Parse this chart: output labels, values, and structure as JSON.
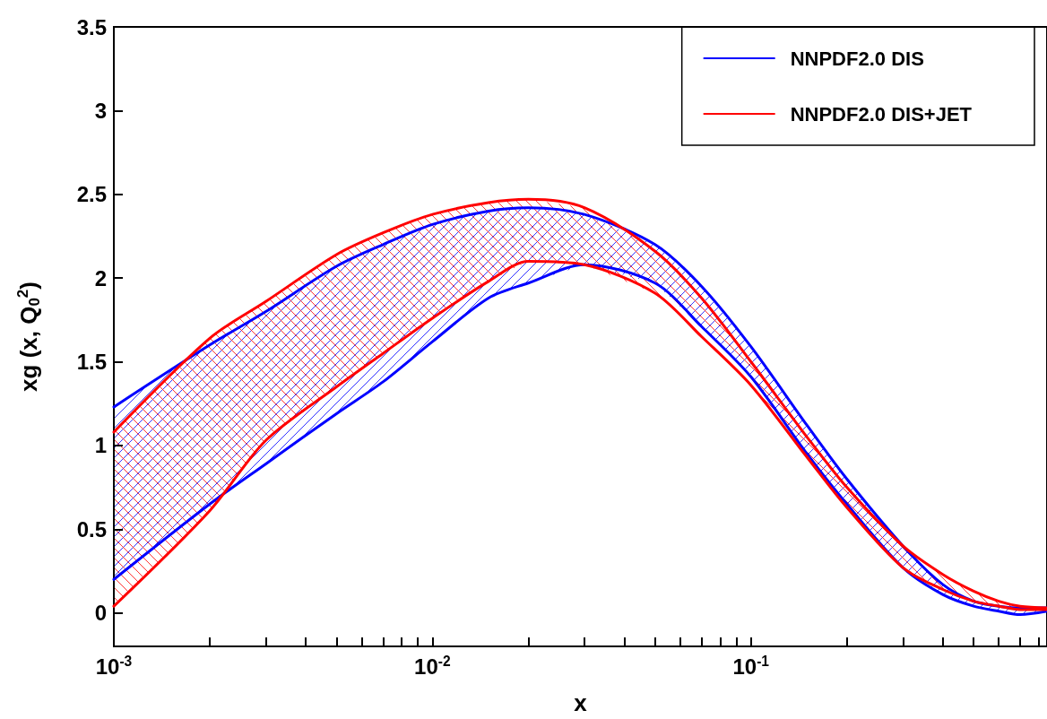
{
  "chart_data": {
    "type": "line",
    "xlabel": "x",
    "ylabel": "xg (x, Q$_{0}$$^{2}$)",
    "x": [
      0.001,
      0.002,
      0.003,
      0.005,
      0.007,
      0.01,
      0.015,
      0.02,
      0.03,
      0.05,
      0.07,
      0.1,
      0.15,
      0.2,
      0.3,
      0.4,
      0.5,
      0.6,
      0.7,
      0.85
    ],
    "series": [
      {
        "name": "NNPDF2.0 DIS",
        "color": "#0000ff",
        "values": [
          1.23,
          1.6,
          1.8,
          2.07,
          2.2,
          2.32,
          2.4,
          2.42,
          2.38,
          2.2,
          1.95,
          1.59,
          1.12,
          0.8,
          0.4,
          0.17,
          0.07,
          0.04,
          0.03,
          0.03
        ],
        "upper": [
          1.23,
          1.6,
          1.8,
          2.07,
          2.2,
          2.32,
          2.4,
          2.42,
          2.38,
          2.2,
          1.95,
          1.59,
          1.12,
          0.8,
          0.4,
          0.17,
          0.07,
          0.04,
          0.03,
          0.03
        ],
        "lower": [
          0.2,
          0.65,
          0.89,
          1.19,
          1.38,
          1.62,
          1.88,
          1.97,
          2.08,
          1.97,
          1.71,
          1.41,
          0.95,
          0.65,
          0.27,
          0.11,
          0.04,
          0.01,
          -0.01,
          0.01
        ]
      },
      {
        "color": "#0000ff",
        "values": [
          0.2,
          0.65,
          0.89,
          1.19,
          1.38,
          1.62,
          1.88,
          1.97,
          2.08,
          1.97,
          1.71,
          1.41,
          0.95,
          0.65,
          0.27,
          0.11,
          0.04,
          0.01,
          -0.01,
          0.01
        ]
      },
      {
        "name": "NNPDF2.0 DIS+JET",
        "color": "#ff0000",
        "values": [
          1.08,
          1.64,
          1.86,
          2.14,
          2.27,
          2.38,
          2.45,
          2.47,
          2.42,
          2.16,
          1.88,
          1.5,
          1.05,
          0.75,
          0.4,
          0.23,
          0.13,
          0.07,
          0.04,
          0.03
        ],
        "upper": [
          1.08,
          1.64,
          1.86,
          2.14,
          2.27,
          2.38,
          2.45,
          2.47,
          2.42,
          2.16,
          1.88,
          1.5,
          1.05,
          0.75,
          0.4,
          0.23,
          0.13,
          0.07,
          0.04,
          0.03
        ],
        "lower": [
          0.04,
          0.61,
          1.03,
          1.35,
          1.55,
          1.76,
          1.98,
          2.1,
          2.08,
          1.91,
          1.65,
          1.36,
          0.93,
          0.63,
          0.27,
          0.14,
          0.07,
          0.04,
          0.02,
          0.02
        ]
      },
      {
        "color": "#ff0000",
        "values": [
          0.04,
          0.61,
          1.03,
          1.35,
          1.55,
          1.76,
          1.98,
          2.1,
          2.08,
          1.91,
          1.65,
          1.36,
          0.93,
          0.63,
          0.27,
          0.14,
          0.07,
          0.04,
          0.02,
          0.02
        ]
      }
    ],
    "xlim": [
      0.001,
      0.85
    ],
    "xticks": [
      {
        "value": 0.001,
        "label": "10$^{-3}$"
      },
      {
        "value": 0.002,
        "label": null
      },
      {
        "value": 0.003,
        "label": null
      },
      {
        "value": 0.004,
        "label": null
      },
      {
        "value": 0.005,
        "label": null
      },
      {
        "value": 0.006,
        "label": null
      },
      {
        "value": 0.007,
        "label": null
      },
      {
        "value": 0.008,
        "label": null
      },
      {
        "value": 0.009,
        "label": null
      },
      {
        "value": 0.01,
        "label": "10$^{-2}$"
      },
      {
        "value": 0.02,
        "label": null
      },
      {
        "value": 0.03,
        "label": null
      },
      {
        "value": 0.04,
        "label": null
      },
      {
        "value": 0.05,
        "label": null
      },
      {
        "value": 0.06,
        "label": null
      },
      {
        "value": 0.07,
        "label": null
      },
      {
        "value": 0.08,
        "label": null
      },
      {
        "value": 0.09,
        "label": null
      },
      {
        "value": 0.1,
        "label": "10$^{-1}$"
      },
      {
        "value": 0.2,
        "label": null
      },
      {
        "value": 0.3,
        "label": null
      },
      {
        "value": 0.4,
        "label": null
      },
      {
        "value": 0.5,
        "label": null
      },
      {
        "value": 0.6,
        "label": null
      },
      {
        "value": 0.7,
        "label": null
      },
      {
        "value": 0.8,
        "label": null
      }
    ],
    "ylim": [
      -0.2,
      3.5
    ],
    "yticks": [
      0,
      0.5,
      1,
      1.5,
      2,
      2.5,
      3,
      3.5
    ],
    "log": "x",
    "grid": false,
    "legend": "top right",
    "line_style": "solid"
  }
}
